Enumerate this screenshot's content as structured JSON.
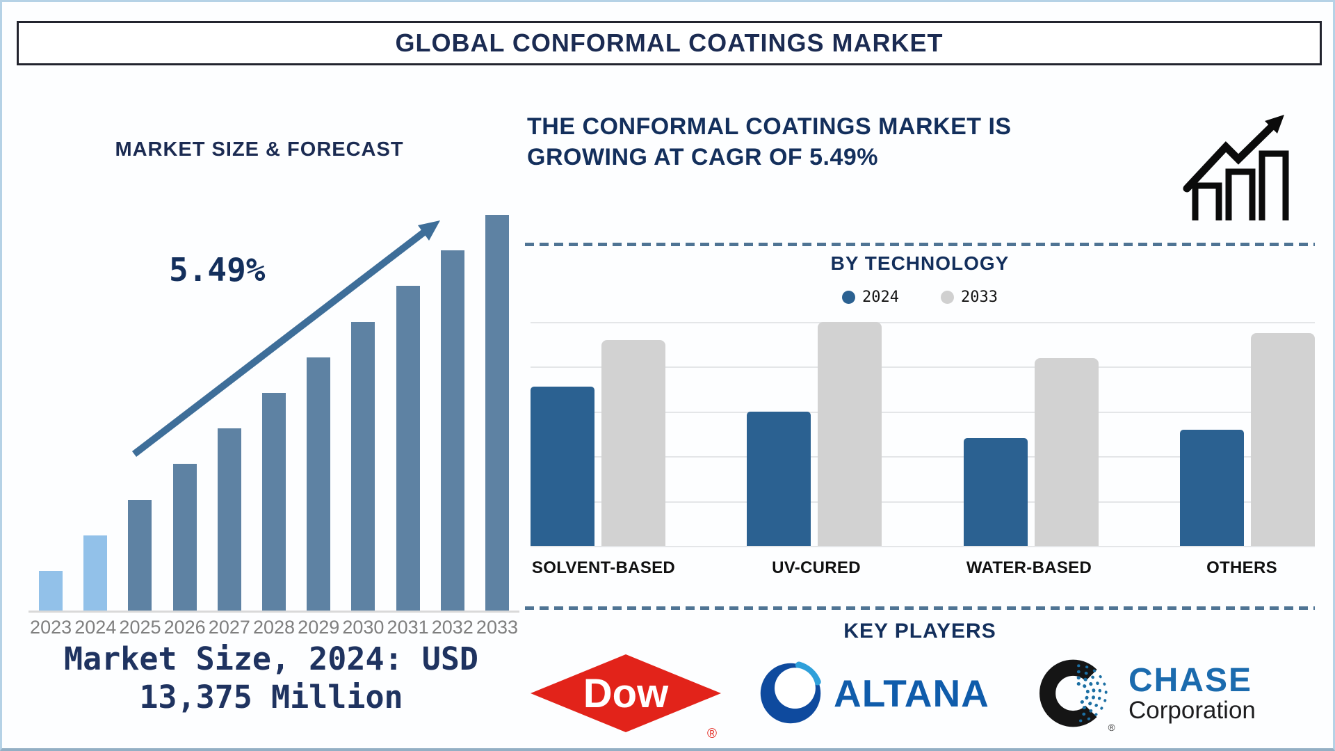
{
  "header": {
    "title": "GLOBAL CONFORMAL COATINGS MARKET"
  },
  "forecast": {
    "heading": "MARKET SIZE & FORECAST",
    "cagr": "5.49%",
    "caption_line1": "Market Size, 2024: USD",
    "caption_line2": "13,375 Million"
  },
  "growth_note": {
    "line1": "THE CONFORMAL COATINGS MARKET IS",
    "line2": "GROWING AT CAGR OF 5.49%"
  },
  "technology": {
    "heading": "BY TECHNOLOGY",
    "legend": [
      {
        "label": "2024",
        "color": "#2b6191"
      },
      {
        "label": "2033",
        "color": "#d0d0d0"
      }
    ]
  },
  "key_players": {
    "heading": "KEY PLAYERS",
    "dow": {
      "wordmark": "Dow",
      "registered": "®",
      "brand_color": "#e2231a"
    },
    "altana": {
      "wordmark": "ALTANA",
      "brand_color": "#0f5cab"
    },
    "chase": {
      "wordmark_top": "CHASE",
      "wordmark_bottom": "Corporation",
      "registered": "®",
      "brand_color": "#1b6bae"
    }
  },
  "chart_data": [
    {
      "type": "bar",
      "title": "MARKET SIZE & FORECAST",
      "categories": [
        "2023",
        "2024",
        "2025",
        "2026",
        "2027",
        "2028",
        "2029",
        "2030",
        "2031",
        "2032",
        "2033"
      ],
      "values_percent_of_max": [
        10,
        19,
        28,
        37,
        46,
        55,
        64,
        73,
        82,
        91,
        100
      ],
      "highlight_first_n": 2,
      "bar_colors": {
        "historical": "#92c1e9",
        "forecast": "#5e82a3"
      },
      "annotation": "5.49%",
      "labeled_value_note": "Market Size, 2024: USD 13,375 Million",
      "xlabel": "",
      "ylabel": "",
      "gridlines": false,
      "legend_position": "none"
    },
    {
      "type": "bar",
      "title": "BY TECHNOLOGY",
      "categories": [
        "SOLVENT-BASED",
        "UV-CURED",
        "WATER-BASED",
        "OTHERS"
      ],
      "series": [
        {
          "name": "2024",
          "color": "#2b6191",
          "values_percent_of_max": [
            71,
            60,
            48,
            52
          ]
        },
        {
          "name": "2033",
          "color": "#d2d2d2",
          "values_percent_of_max": [
            92,
            100,
            84,
            95
          ]
        }
      ],
      "xlabel": "",
      "ylabel": "",
      "gridlines": true,
      "legend_position": "top"
    }
  ]
}
